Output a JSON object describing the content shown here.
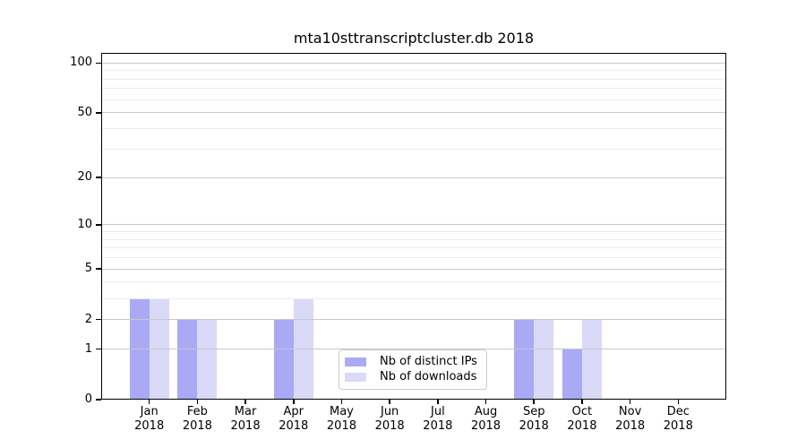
{
  "figure": {
    "title": "mta10sttranscriptcluster.db 2018"
  },
  "chart_data": {
    "type": "bar",
    "title": "mta10sttranscriptcluster.db 2018",
    "categories": [
      "Jan",
      "Feb",
      "Mar",
      "Apr",
      "May",
      "Jun",
      "Jul",
      "Aug",
      "Sep",
      "Oct",
      "Nov",
      "Dec"
    ],
    "category_year": "2018",
    "series": [
      {
        "name": "Nb of distinct IPs",
        "color": "#a9a9f5",
        "values": [
          3,
          2,
          0,
          2,
          0,
          0,
          0,
          0,
          2,
          1,
          0,
          0
        ]
      },
      {
        "name": "Nb of downloads",
        "color": "#d9d9f8",
        "values": [
          3,
          2,
          0,
          3,
          0,
          0,
          0,
          0,
          2,
          2,
          0,
          0
        ]
      }
    ],
    "xlabel": "",
    "ylabel": "",
    "yscale": "log1p",
    "ylim": [
      0,
      115
    ],
    "yticks_labeled": [
      0,
      1,
      2,
      5,
      10,
      20,
      50,
      100
    ],
    "yticks_minor": [
      3,
      4,
      6,
      7,
      8,
      9,
      30,
      40,
      60,
      70,
      80,
      90
    ],
    "grid": true,
    "legend_position": "lower center"
  }
}
